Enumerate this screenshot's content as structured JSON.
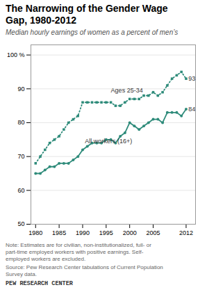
{
  "chart_data": {
    "type": "line",
    "title": "The Narrowing of the Gender Wage\nGap, 1980-2012",
    "subtitle": "Median hourly earnings of women as a percent of men’s",
    "note": "Note: Estimates are for civilian, non-institutionalized, full- or\npart-time employed workers with positive earnings. Self-\nemployed workers are excluded.",
    "source": "Source: Pew Research Center tabulations of Current Population\nSurvey data.",
    "footer": "PEW RESEARCH CENTER",
    "x": [
      1980,
      1981,
      1982,
      1983,
      1984,
      1985,
      1986,
      1987,
      1988,
      1989,
      1990,
      1991,
      1992,
      1993,
      1994,
      1995,
      1996,
      1997,
      1998,
      1999,
      2000,
      2001,
      2002,
      2003,
      2004,
      2005,
      2006,
      2007,
      2008,
      2009,
      2010,
      2011,
      2012
    ],
    "series": [
      {
        "name": "Ages 25-34",
        "color": "#2e8b7a",
        "marker": "square",
        "line_style": "dotted",
        "values": [
          68,
          70,
          72,
          74,
          75,
          76,
          78,
          80,
          81,
          82,
          86,
          86,
          86,
          86,
          86,
          86,
          86,
          85,
          85,
          86,
          87,
          87,
          87,
          88,
          88,
          89,
          88,
          89,
          91,
          93,
          94,
          95,
          93
        ]
      },
      {
        "name": "All workers (16+)",
        "color": "#2e8b7a",
        "marker": "circle",
        "line_style": "solid",
        "values": [
          65,
          65,
          66,
          67,
          67,
          68,
          68,
          68,
          69,
          70,
          72,
          73,
          74,
          74,
          74,
          75,
          75,
          74,
          76,
          77,
          80,
          79,
          78,
          79,
          80,
          81,
          81,
          80,
          83,
          83,
          83,
          82,
          84
        ]
      }
    ],
    "annotations": [
      {
        "text": "Ages 25-34",
        "x": 1996,
        "y": 89.5
      },
      {
        "text": "All workers (16+)",
        "x": 1990.5,
        "y": 74.5
      },
      {
        "text": "84",
        "x": 2012.5,
        "y": 84
      },
      {
        "text": "93",
        "x": 2012.5,
        "y": 93
      }
    ],
    "xlim": [
      1979,
      2014
    ],
    "xticks": [
      1980,
      1985,
      1990,
      1995,
      2000,
      2005,
      2012
    ],
    "ylim": [
      50,
      103
    ],
    "yticks": [
      50,
      60,
      70,
      80,
      90,
      {
        "value": 100,
        "label": "100 %"
      }
    ],
    "grid": true
  }
}
